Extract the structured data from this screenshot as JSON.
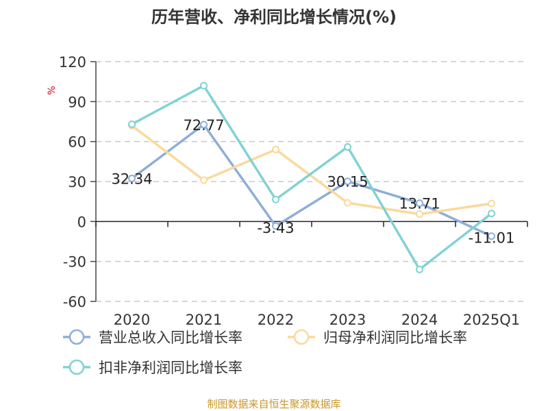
{
  "chart_data": {
    "type": "line",
    "title": "历年营收、净利同比增长情况(%)",
    "ylabel": "%",
    "xlabel": "",
    "categories": [
      "2020",
      "2021",
      "2022",
      "2023",
      "2024",
      "2025Q1"
    ],
    "ylim": [
      -60,
      120
    ],
    "yticks": [
      120,
      90,
      60,
      30,
      0,
      -30,
      -60
    ],
    "grid": true,
    "legend_position": "bottom",
    "series": [
      {
        "name": "营业总收入同比增长率",
        "color": "#8eaed8",
        "values": [
          32.34,
          72.77,
          -3.43,
          30.15,
          13.71,
          -11.01
        ],
        "labels": [
          "32.34",
          "72.77",
          "-3.43",
          "30.15",
          "13.71",
          "-11.01"
        ]
      },
      {
        "name": "归母净利润同比增长率",
        "color": "#fad99b",
        "values": [
          72,
          31,
          54,
          14,
          5.5,
          13.5
        ],
        "labels": []
      },
      {
        "name": "扣非净利润同比增长率",
        "color": "#80d2d4",
        "values": [
          73,
          102,
          16.5,
          56,
          -36,
          6
        ]
      }
    ]
  },
  "source": "制图数据来自恒生聚源数据库"
}
